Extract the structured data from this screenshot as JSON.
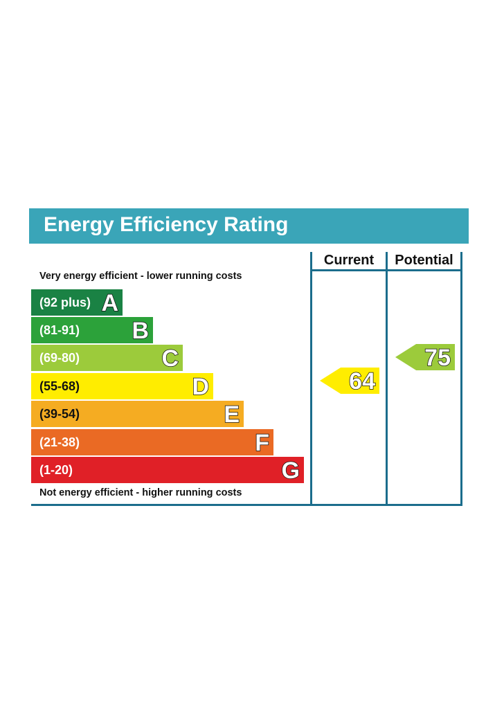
{
  "title": "Energy Efficiency Rating",
  "columns": {
    "current": "Current",
    "potential": "Potential"
  },
  "notes": {
    "top": "Very energy efficient - lower running costs",
    "bottom": "Not energy efficient - higher running costs"
  },
  "bands": [
    {
      "range": "(92 plus)",
      "letter": "A",
      "color": "#1a8244"
    },
    {
      "range": "(81-91)",
      "letter": "B",
      "color": "#2ca23a"
    },
    {
      "range": "(69-80)",
      "letter": "C",
      "color": "#9ccb3b"
    },
    {
      "range": "(55-68)",
      "letter": "D",
      "color": "#ffed00"
    },
    {
      "range": "(39-54)",
      "letter": "E",
      "color": "#f5ac22"
    },
    {
      "range": "(21-38)",
      "letter": "F",
      "color": "#ea6a24"
    },
    {
      "range": "(1-20)",
      "letter": "G",
      "color": "#e02027"
    }
  ],
  "ratings": {
    "current": {
      "value": "64",
      "color": "#ffed00"
    },
    "potential": {
      "value": "75",
      "color": "#9ccb3b"
    }
  }
}
